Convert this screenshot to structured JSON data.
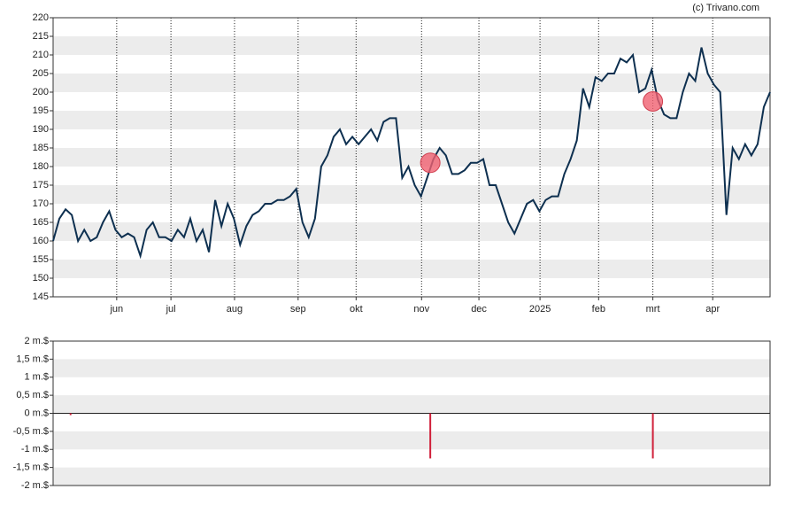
{
  "credit": "(c) Trivano.com",
  "chart_data": [
    {
      "type": "line",
      "xlim": [
        0,
        115
      ],
      "xticks": [
        {
          "value": 10.2,
          "label": "jun"
        },
        {
          "value": 18.9,
          "label": "jul"
        },
        {
          "value": 29.1,
          "label": "aug"
        },
        {
          "value": 39.3,
          "label": "sep"
        },
        {
          "value": 48.6,
          "label": "okt"
        },
        {
          "value": 59.1,
          "label": "nov"
        },
        {
          "value": 68.3,
          "label": "dec"
        },
        {
          "value": 78.1,
          "label": "2025"
        },
        {
          "value": 87.5,
          "label": "feb"
        },
        {
          "value": 96.2,
          "label": "mrt"
        },
        {
          "value": 105.8,
          "label": "apr"
        }
      ],
      "ylim": [
        145,
        220
      ],
      "yticks": [
        145,
        150,
        155,
        160,
        165,
        170,
        175,
        180,
        185,
        190,
        195,
        200,
        205,
        210,
        215,
        220
      ],
      "grid": true,
      "series": [
        {
          "color": "#0e3050",
          "values": [
            160,
            166,
            168.5,
            167,
            160,
            163,
            160,
            161,
            165,
            168,
            163,
            161,
            162,
            161,
            156,
            163,
            165,
            161,
            161,
            160,
            163,
            161,
            166,
            160,
            163,
            157,
            171,
            164,
            170,
            166,
            159,
            164,
            167,
            168,
            170,
            170,
            171,
            171,
            172,
            174,
            165,
            161,
            166,
            180,
            183,
            188,
            190,
            186,
            188,
            186,
            188,
            190,
            187,
            192,
            193,
            193,
            177,
            180,
            175,
            172,
            177,
            182,
            185,
            183,
            178,
            178,
            179,
            181,
            181,
            182,
            175,
            175,
            170,
            165,
            162,
            166,
            170,
            171,
            168,
            171,
            172,
            172,
            178,
            182,
            187,
            201,
            196,
            204,
            203,
            205,
            205,
            209,
            208,
            210,
            200,
            201,
            206,
            198,
            194,
            193,
            193,
            200,
            205,
            203,
            212,
            205,
            202,
            200,
            167,
            185,
            182,
            186,
            183,
            186,
            196,
            200
          ]
        }
      ],
      "markers": {
        "color": "#f06070",
        "x": [
          60.5,
          96.2
        ],
        "values": [
          181,
          197.5
        ]
      }
    },
    {
      "type": "bar",
      "xlim": [
        0,
        115
      ],
      "ylim": [
        -2,
        2
      ],
      "yticks": [
        {
          "value": -2,
          "label": "-2 m.$"
        },
        {
          "value": -1.5,
          "label": "-1,5 m.$"
        },
        {
          "value": -1,
          "label": "-1 m.$"
        },
        {
          "value": -0.5,
          "label": "-0,5 m.$"
        },
        {
          "value": 0,
          "label": "0 m.$"
        },
        {
          "value": 0.5,
          "label": "0,5 m.$"
        },
        {
          "value": 1,
          "label": "1 m.$"
        },
        {
          "value": 1.5,
          "label": "1,5 m.$"
        },
        {
          "value": 2,
          "label": "2 m.$"
        }
      ],
      "grid": true,
      "color": "#d0203a",
      "x": [
        2.8,
        60.5,
        96.2
      ],
      "values": [
        -0.05,
        -1.25,
        -1.25
      ]
    }
  ]
}
